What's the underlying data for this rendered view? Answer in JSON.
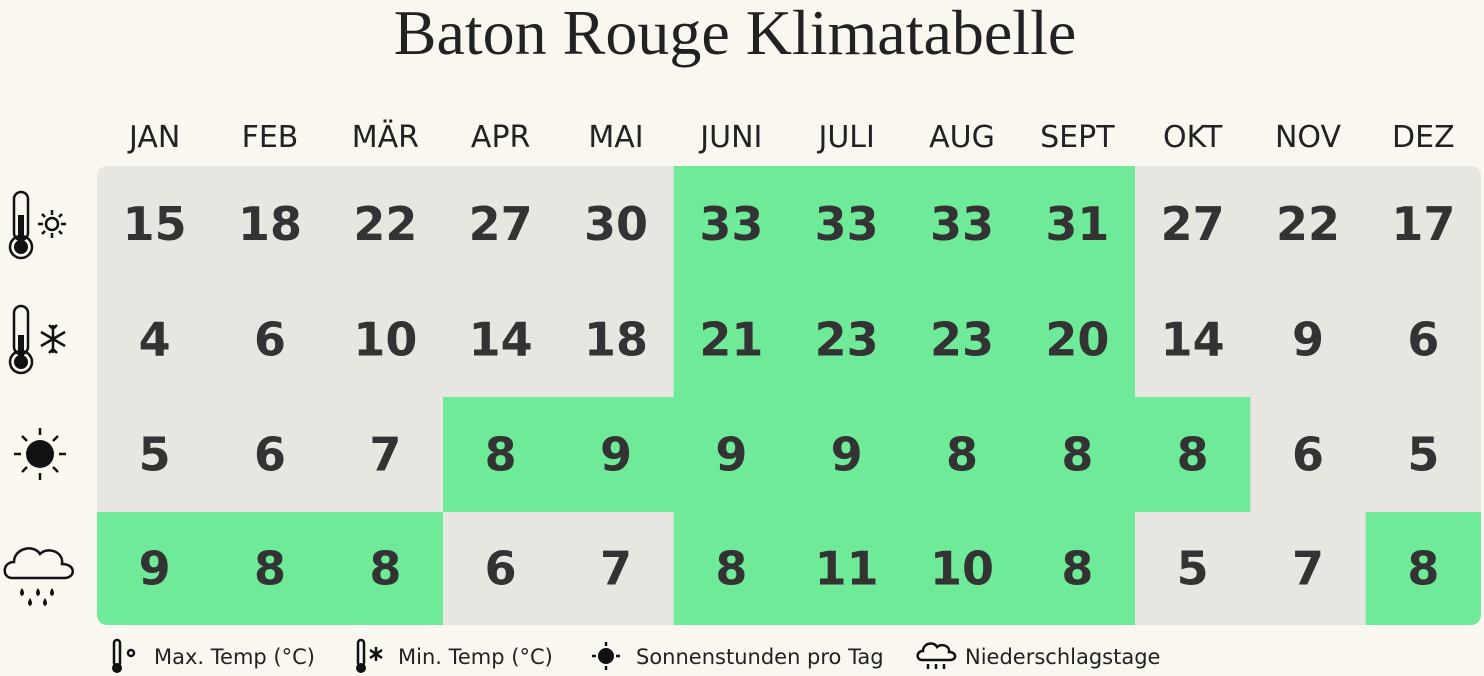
{
  "title": "Baton Rouge Klimatabelle",
  "table": {
    "columns": [
      "JAN",
      "FEB",
      "MÄR",
      "APR",
      "MAI",
      "JUNI",
      "JULI",
      "AUG",
      "SEPT",
      "OKT",
      "NOV",
      "DEZ"
    ],
    "rows": [
      {
        "label": "Max. Temp (°C)",
        "values": [
          15,
          18,
          22,
          27,
          30,
          33,
          33,
          33,
          31,
          27,
          22,
          17
        ],
        "highlighted": [
          false,
          false,
          false,
          false,
          false,
          true,
          true,
          true,
          true,
          false,
          false,
          false
        ]
      },
      {
        "label": "Min. Temp (°C)",
        "values": [
          4,
          6,
          10,
          14,
          18,
          21,
          23,
          23,
          20,
          14,
          9,
          6
        ],
        "highlighted": [
          false,
          false,
          false,
          false,
          false,
          true,
          true,
          true,
          true,
          false,
          false,
          false
        ]
      },
      {
        "label": "Sonnenstunden pro Tag",
        "values": [
          5,
          6,
          7,
          8,
          9,
          9,
          9,
          8,
          8,
          8,
          6,
          5
        ],
        "highlighted": [
          false,
          false,
          false,
          true,
          true,
          true,
          true,
          true,
          true,
          true,
          false,
          false
        ]
      },
      {
        "label": "Niederschlagstage",
        "values": [
          9,
          8,
          8,
          6,
          7,
          8,
          11,
          10,
          8,
          5,
          7,
          8
        ],
        "highlighted": [
          true,
          true,
          true,
          false,
          false,
          true,
          true,
          true,
          true,
          false,
          false,
          true
        ]
      }
    ],
    "highlight_color": "#6eea98",
    "base_color": "#e8e6e0"
  }
}
